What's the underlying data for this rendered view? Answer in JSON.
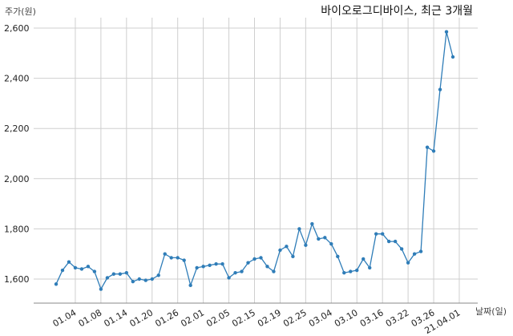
{
  "chart_data": {
    "type": "line",
    "title": "바이오로그디바이스, 최근 3개월",
    "ylabel": "주가(원)",
    "xlabel": "날짜(일)",
    "ylim": [
      1500,
      2650
    ],
    "yticks": [
      1600,
      1800,
      2000,
      2200,
      2400,
      2600
    ],
    "ytick_labels": [
      "1,600",
      "1,800",
      "2,000",
      "2,200",
      "2,400",
      "2,600"
    ],
    "xtick_labels": [
      "01.04",
      "01.08",
      "01.14",
      "01.20",
      "01.26",
      "02.01",
      "02.05",
      "02.15",
      "02.19",
      "02.25",
      "03.04",
      "03.10",
      "03.16",
      "03.22",
      "03.26",
      "21.04.01"
    ],
    "xtick_positions": [
      3,
      7,
      11,
      15,
      19,
      23,
      27,
      31,
      35,
      39,
      43,
      47,
      51,
      55,
      59,
      63
    ],
    "grid": true,
    "legend": "none",
    "line_color": "#2f7db8",
    "series": [
      {
        "values": [
          1580,
          1635,
          1668,
          1645,
          1640,
          1650,
          1630,
          1560,
          1605,
          1620,
          1620,
          1625,
          1590,
          1600,
          1595,
          1600,
          1615,
          1700,
          1685,
          1685,
          1675,
          1575,
          1645,
          1650,
          1655,
          1660,
          1660,
          1605,
          1625,
          1630,
          1665,
          1680,
          1685,
          1650,
          1630,
          1715,
          1730,
          1690,
          1800,
          1735,
          1820,
          1760,
          1765,
          1740,
          1690,
          1625,
          1630,
          1635,
          1680,
          1645,
          1780,
          1780,
          1750,
          1750,
          1720,
          1665,
          1700,
          1710,
          2125,
          2110,
          2355,
          2585,
          2485
        ]
      }
    ]
  }
}
